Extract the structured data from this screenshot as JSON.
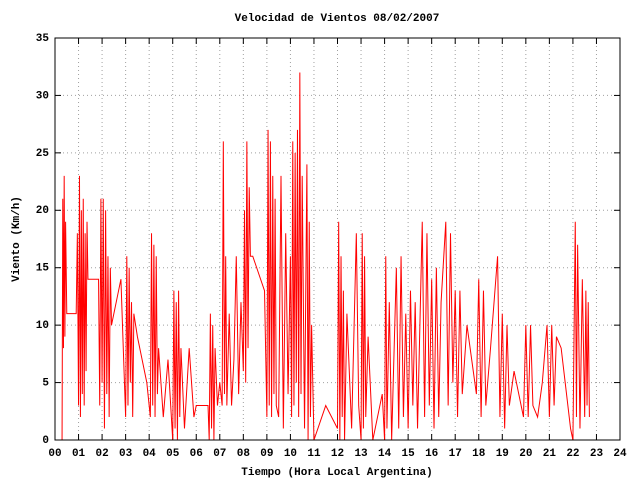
{
  "chart_data": {
    "type": "line",
    "title": "Velocidad de Vientos 08/02/2007",
    "xlabel": "Tiempo (Hora Local Argentina)",
    "ylabel": "Viento (Km/h)",
    "color": "#ff0000",
    "grid": true,
    "xlim": [
      0,
      24
    ],
    "ylim": [
      0,
      35
    ],
    "yticks": [
      0,
      5,
      10,
      15,
      20,
      25,
      30,
      35
    ],
    "xticks": [
      {
        "value": 0,
        "label": "00"
      },
      {
        "value": 1,
        "label": "01"
      },
      {
        "value": 2,
        "label": "02"
      },
      {
        "value": 3,
        "label": "03"
      },
      {
        "value": 4,
        "label": "04"
      },
      {
        "value": 5,
        "label": "05"
      },
      {
        "value": 6,
        "label": "06"
      },
      {
        "value": 7,
        "label": "07"
      },
      {
        "value": 8,
        "label": "08"
      },
      {
        "value": 9,
        "label": "09"
      },
      {
        "value": 10,
        "label": "10"
      },
      {
        "value": 11,
        "label": "11"
      },
      {
        "value": 12,
        "label": "12"
      },
      {
        "value": 13,
        "label": "13"
      },
      {
        "value": 14,
        "label": "14"
      },
      {
        "value": 15,
        "label": "15"
      },
      {
        "value": 16,
        "label": "16"
      },
      {
        "value": 17,
        "label": "17"
      },
      {
        "value": 18,
        "label": "18"
      },
      {
        "value": 19,
        "label": "19"
      },
      {
        "value": 20,
        "label": "20"
      },
      {
        "value": 21,
        "label": "21"
      },
      {
        "value": 22,
        "label": "22"
      },
      {
        "value": 23,
        "label": "23"
      },
      {
        "value": 24,
        "label": "24"
      }
    ],
    "x": [
      0.3,
      0.33,
      0.36,
      0.39,
      0.42,
      0.45,
      0.5,
      0.9,
      0.95,
      1.0,
      1.04,
      1.08,
      1.12,
      1.16,
      1.2,
      1.24,
      1.28,
      1.32,
      1.36,
      1.4,
      1.5,
      1.85,
      1.9,
      1.95,
      2.0,
      2.05,
      2.1,
      2.15,
      2.2,
      2.25,
      2.3,
      2.35,
      2.4,
      2.6,
      2.8,
      3.0,
      3.05,
      3.1,
      3.15,
      3.2,
      3.25,
      3.3,
      3.35,
      3.5,
      3.9,
      4.05,
      4.1,
      4.15,
      4.2,
      4.25,
      4.3,
      4.35,
      4.4,
      4.6,
      4.8,
      5.0,
      5.05,
      5.1,
      5.15,
      5.2,
      5.25,
      5.3,
      5.35,
      5.5,
      5.7,
      5.9,
      6.0,
      6.5,
      6.55,
      6.6,
      6.65,
      6.7,
      6.75,
      6.8,
      6.9,
      7.0,
      7.1,
      7.15,
      7.2,
      7.25,
      7.3,
      7.4,
      7.5,
      7.6,
      7.7,
      7.8,
      7.9,
      8.0,
      8.05,
      8.1,
      8.15,
      8.2,
      8.25,
      8.3,
      8.4,
      8.9,
      9.0,
      9.05,
      9.1,
      9.15,
      9.2,
      9.25,
      9.3,
      9.35,
      9.4,
      9.5,
      9.6,
      9.7,
      9.8,
      9.9,
      10.0,
      10.05,
      10.1,
      10.15,
      10.2,
      10.25,
      10.3,
      10.35,
      10.4,
      10.45,
      10.5,
      10.6,
      10.7,
      10.75,
      10.8,
      10.85,
      10.9,
      11.0,
      11.5,
      12.0,
      12.05,
      12.1,
      12.15,
      12.2,
      12.25,
      12.3,
      12.4,
      12.6,
      12.8,
      12.9,
      13.0,
      13.05,
      13.1,
      13.15,
      13.2,
      13.3,
      13.5,
      13.9,
      14.0,
      14.05,
      14.1,
      14.2,
      14.3,
      14.5,
      14.6,
      14.7,
      14.8,
      14.9,
      15.0,
      15.1,
      15.2,
      15.3,
      15.4,
      15.6,
      15.7,
      15.8,
      15.9,
      16.0,
      16.1,
      16.2,
      16.3,
      16.4,
      16.6,
      16.7,
      16.8,
      16.9,
      17.0,
      17.1,
      17.2,
      17.3,
      17.5,
      17.9,
      18.0,
      18.1,
      18.2,
      18.3,
      18.5,
      18.8,
      18.9,
      19.0,
      19.1,
      19.2,
      19.3,
      19.5,
      19.9,
      20.0,
      20.1,
      20.2,
      20.3,
      20.5,
      20.7,
      20.9,
      21.0,
      21.1,
      21.2,
      21.3,
      21.5,
      21.9,
      22.0,
      22.1,
      22.15,
      22.2,
      22.3,
      22.4,
      22.5,
      22.55,
      22.6,
      22.65,
      22.7
    ],
    "values": [
      0,
      21,
      8,
      23,
      9,
      19,
      11,
      11,
      18,
      3,
      23,
      2,
      20,
      4,
      21,
      3,
      18,
      6,
      19,
      14,
      14,
      14,
      3,
      21,
      5,
      21,
      1,
      20,
      4,
      16,
      2,
      15,
      10,
      12,
      14,
      2,
      16,
      3,
      15,
      5,
      12,
      2,
      11,
      9,
      5,
      2,
      18,
      3,
      17,
      2,
      16,
      4,
      8,
      2,
      7,
      0,
      13,
      1,
      12,
      0,
      13,
      2,
      8,
      1,
      8,
      2,
      3,
      3,
      0,
      11,
      1,
      10,
      0,
      8,
      3,
      5,
      3,
      26,
      4,
      16,
      3,
      11,
      3,
      7,
      16,
      4,
      12,
      6,
      20,
      5,
      26,
      8,
      22,
      16,
      16,
      13,
      2,
      27,
      3,
      26,
      2,
      23,
      4,
      21,
      3,
      2,
      23,
      1,
      18,
      4,
      16,
      2,
      26,
      3,
      25,
      5,
      27,
      2,
      32,
      4,
      23,
      1,
      24,
      0,
      19,
      2,
      10,
      0,
      3,
      1,
      19,
      0,
      16,
      2,
      13,
      0,
      11,
      1,
      18,
      3,
      0,
      18,
      1,
      16,
      2,
      9,
      0,
      4,
      0,
      16,
      1,
      12,
      0,
      15,
      1,
      16,
      2,
      11,
      1,
      13,
      3,
      12,
      1,
      19,
      2,
      18,
      3,
      14,
      1,
      15,
      2,
      12,
      19,
      3,
      18,
      5,
      13,
      2,
      13,
      4,
      10,
      4,
      14,
      2,
      13,
      3,
      8,
      16,
      2,
      11,
      1,
      10,
      3,
      6,
      2,
      10,
      2,
      10,
      3,
      2,
      5,
      10,
      2,
      10,
      3,
      9,
      8,
      1,
      0,
      19,
      2,
      17,
      1,
      14,
      2,
      13,
      3,
      12,
      2
    ]
  }
}
